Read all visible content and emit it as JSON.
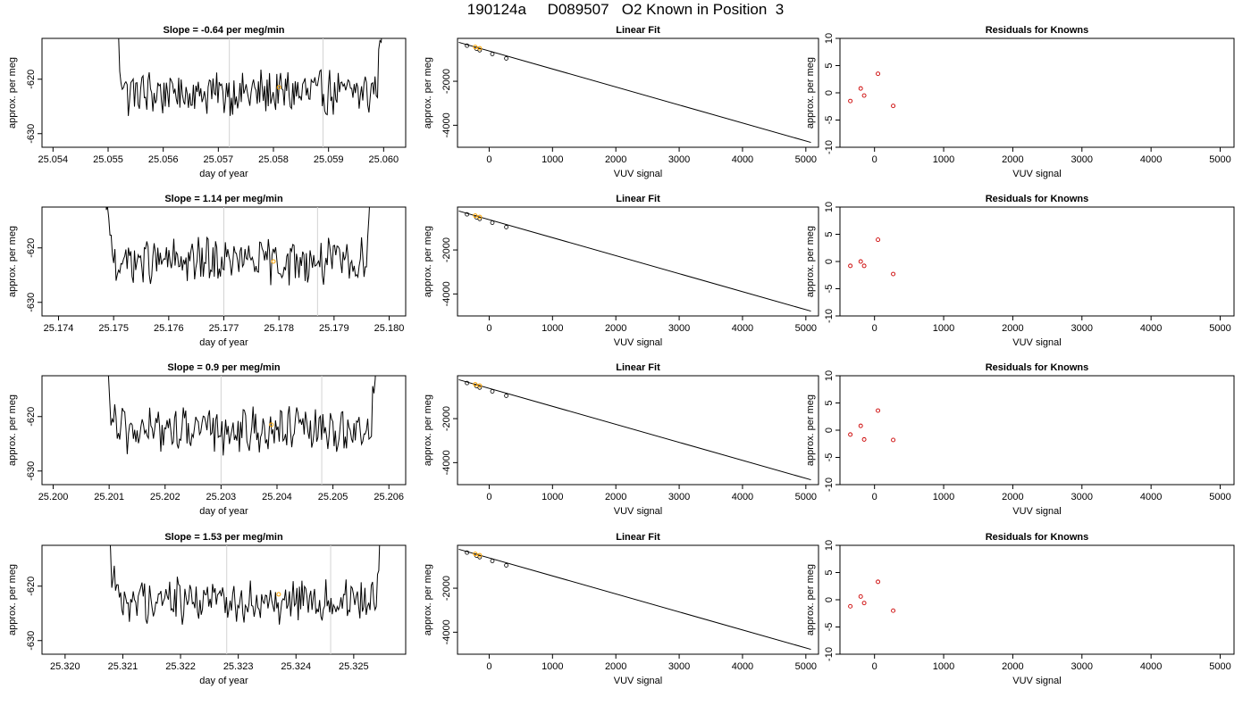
{
  "figure": {
    "title": "190124a     D089507   O2 Known in Position  3"
  },
  "colors": {
    "trace": "#000000",
    "highlight": "#ffa500",
    "residual_point": "#cc0000",
    "vline": "#d3d3d3"
  },
  "chart_data": [
    {
      "type": "line",
      "panel": "time-series",
      "title": "Slope =  -0.64  per meg/min",
      "xlabel": "day of year",
      "ylabel": "approx. per meg",
      "xticks": [
        "25.054",
        "25.055",
        "25.056",
        "25.057",
        "25.058",
        "25.059",
        "25.060"
      ],
      "yticks": [
        "-620",
        "-630"
      ],
      "xlim": [
        25.0538,
        25.0604
      ],
      "ylim": [
        -632.5,
        -612.5
      ],
      "trace_x_range": [
        25.0551,
        25.06
      ],
      "vlines": [
        25.0572,
        25.0589
      ],
      "highlight": [
        25.0581,
        -621.5
      ],
      "slope": -0.64
    },
    {
      "type": "scatter",
      "panel": "linear-fit",
      "title": "Linear Fit",
      "xlabel": "VUV signal",
      "ylabel": "approx. per meg",
      "xticks": [
        "0",
        "1000",
        "2000",
        "3000",
        "4000",
        "5000"
      ],
      "yticks": [
        "-2000",
        "-4000"
      ],
      "xlim": [
        -500,
        5200
      ],
      "ylim": [
        -5000,
        -50
      ],
      "points_x": [
        -350,
        -200,
        -150,
        50,
        270
      ],
      "points_y": [
        -380,
        -520,
        -590,
        -760,
        -960
      ],
      "highlight_x": [
        -220,
        -150
      ],
      "line": [
        [
          -480,
          -230
        ],
        [
          5080,
          -4780
        ]
      ]
    },
    {
      "type": "scatter",
      "panel": "residuals",
      "title": "Residuals for Knowns",
      "xlabel": "VUV signal",
      "ylabel": "approx. per meg",
      "xticks": [
        "0",
        "1000",
        "2000",
        "3000",
        "4000",
        "5000"
      ],
      "yticks": [
        "10",
        "5",
        "0",
        "-5",
        "-10"
      ],
      "xlim": [
        -500,
        5200
      ],
      "ylim": [
        -10,
        10
      ],
      "points_x": [
        -350,
        -200,
        -150,
        50,
        270
      ],
      "points_y": [
        -1.5,
        0.8,
        -0.5,
        3.5,
        -2.4
      ]
    },
    {
      "type": "line",
      "panel": "time-series",
      "title": "Slope =  1.14  per meg/min",
      "xlabel": "day of year",
      "ylabel": "approx. per meg",
      "xticks": [
        "25.174",
        "25.175",
        "25.176",
        "25.177",
        "25.178",
        "25.179",
        "25.180"
      ],
      "yticks": [
        "-620",
        "-630"
      ],
      "xlim": [
        25.1737,
        25.1803
      ],
      "ylim": [
        -632.5,
        -612.5
      ],
      "trace_x_range": [
        25.1748,
        25.1797
      ],
      "vlines": [
        25.177,
        25.1787
      ],
      "highlight": [
        25.1779,
        -622.5
      ],
      "slope": 1.14
    },
    {
      "type": "scatter",
      "panel": "linear-fit",
      "title": "Linear Fit",
      "xlabel": "VUV signal",
      "ylabel": "approx. per meg",
      "xticks": [
        "0",
        "1000",
        "2000",
        "3000",
        "4000",
        "5000"
      ],
      "yticks": [
        "-2000",
        "-4000"
      ],
      "xlim": [
        -500,
        5200
      ],
      "ylim": [
        -5000,
        -50
      ],
      "points_x": [
        -350,
        -200,
        -150,
        50,
        270
      ],
      "points_y": [
        -380,
        -520,
        -590,
        -760,
        -960
      ],
      "highlight_x": [
        -220,
        -150
      ],
      "line": [
        [
          -480,
          -230
        ],
        [
          5080,
          -4780
        ]
      ]
    },
    {
      "type": "scatter",
      "panel": "residuals",
      "title": "Residuals for Knowns",
      "xlabel": "VUV signal",
      "ylabel": "approx. per meg",
      "xticks": [
        "0",
        "1000",
        "2000",
        "3000",
        "4000",
        "5000"
      ],
      "yticks": [
        "10",
        "5",
        "0",
        "-5",
        "-10"
      ],
      "xlim": [
        -500,
        5200
      ],
      "ylim": [
        -10,
        10
      ],
      "points_x": [
        -350,
        -200,
        -150,
        50,
        270
      ],
      "points_y": [
        -0.8,
        0,
        -0.8,
        4,
        -2.3
      ]
    },
    {
      "type": "line",
      "panel": "time-series",
      "title": "Slope =  0.9  per meg/min",
      "xlabel": "day of year",
      "ylabel": "approx. per meg",
      "xticks": [
        "25.200",
        "25.201",
        "25.202",
        "25.203",
        "25.204",
        "25.205",
        "25.206"
      ],
      "yticks": [
        "-620",
        "-630"
      ],
      "xlim": [
        25.1998,
        25.2063
      ],
      "ylim": [
        -632.5,
        -612.5
      ],
      "trace_x_range": [
        25.2009,
        25.2058
      ],
      "vlines": [
        25.203,
        25.2048
      ],
      "highlight": [
        25.2039,
        -621.5
      ],
      "slope": 0.9
    },
    {
      "type": "scatter",
      "panel": "linear-fit",
      "title": "Linear Fit",
      "xlabel": "VUV signal",
      "ylabel": "approx. per meg",
      "xticks": [
        "0",
        "1000",
        "2000",
        "3000",
        "4000",
        "5000"
      ],
      "yticks": [
        "-2000",
        "-4000"
      ],
      "xlim": [
        -500,
        5200
      ],
      "ylim": [
        -5000,
        -50
      ],
      "points_x": [
        -350,
        -200,
        -150,
        50,
        270
      ],
      "points_y": [
        -380,
        -520,
        -590,
        -760,
        -960
      ],
      "highlight_x": [
        -220,
        -150
      ],
      "line": [
        [
          -480,
          -230
        ],
        [
          5080,
          -4780
        ]
      ]
    },
    {
      "type": "scatter",
      "panel": "residuals",
      "title": "Residuals for Knowns",
      "xlabel": "VUV signal",
      "ylabel": "approx. per meg",
      "xticks": [
        "0",
        "1000",
        "2000",
        "3000",
        "4000",
        "5000"
      ],
      "yticks": [
        "10",
        "5",
        "0",
        "-5",
        "-10"
      ],
      "xlim": [
        -500,
        5200
      ],
      "ylim": [
        -10,
        10
      ],
      "points_x": [
        -350,
        -200,
        -150,
        50,
        270
      ],
      "points_y": [
        -0.8,
        0.8,
        -1.7,
        3.6,
        -1.8
      ]
    },
    {
      "type": "line",
      "panel": "time-series",
      "title": "Slope =  1.53  per meg/min",
      "xlabel": "day of year",
      "ylabel": "approx. per meg",
      "xticks": [
        "25.320",
        "25.321",
        "25.322",
        "25.323",
        "25.324",
        "25.325"
      ],
      "yticks": [
        "-620",
        "-630"
      ],
      "xlim": [
        25.3196,
        25.3259
      ],
      "ylim": [
        -632.5,
        -612.5
      ],
      "trace_x_range": [
        25.3207,
        25.3255
      ],
      "vlines": [
        25.3228,
        25.3246
      ],
      "highlight": [
        25.3237,
        -621.5
      ],
      "slope": 1.53
    },
    {
      "type": "scatter",
      "panel": "linear-fit",
      "title": "Linear Fit",
      "xlabel": "VUV signal",
      "ylabel": "approx. per meg",
      "xticks": [
        "0",
        "1000",
        "2000",
        "3000",
        "4000",
        "5000"
      ],
      "yticks": [
        "-2000",
        "-4000"
      ],
      "xlim": [
        -500,
        5200
      ],
      "ylim": [
        -5000,
        -50
      ],
      "points_x": [
        -350,
        -200,
        -150,
        50,
        270
      ],
      "points_y": [
        -380,
        -520,
        -590,
        -760,
        -960
      ],
      "highlight_x": [
        -220,
        -150
      ],
      "line": [
        [
          -480,
          -230
        ],
        [
          5080,
          -4780
        ]
      ]
    },
    {
      "type": "scatter",
      "panel": "residuals",
      "title": "Residuals for Knowns",
      "xlabel": "VUV signal",
      "ylabel": "approx. per meg",
      "xticks": [
        "0",
        "1000",
        "2000",
        "3000",
        "4000",
        "5000"
      ],
      "yticks": [
        "10",
        "5",
        "0",
        "-5",
        "-10"
      ],
      "xlim": [
        -500,
        5200
      ],
      "ylim": [
        -10,
        10
      ],
      "points_x": [
        -350,
        -200,
        -150,
        50,
        270
      ],
      "points_y": [
        -1.2,
        0.6,
        -0.6,
        3.3,
        -2.0
      ]
    }
  ]
}
